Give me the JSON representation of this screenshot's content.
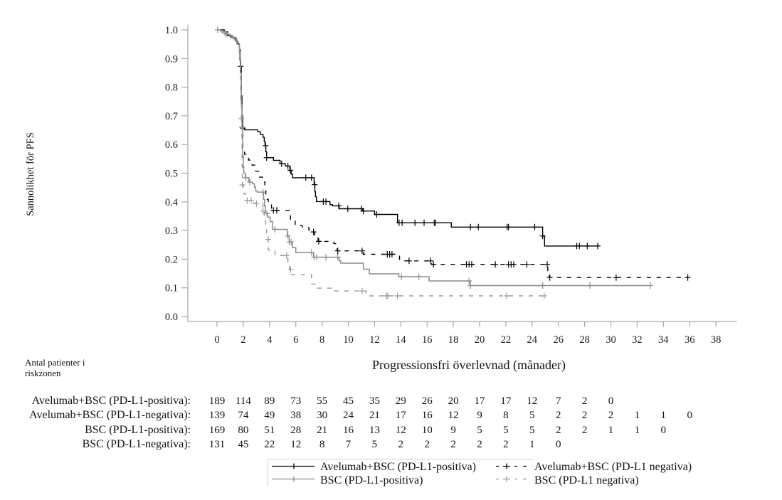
{
  "chart_data": {
    "type": "line",
    "subtype": "kaplan-meier",
    "title": "",
    "xlabel": "Progressionsfri överlevnad (månader)",
    "ylabel": "Sannolikhet för PFS",
    "xlim": [
      -2.3,
      39.6
    ],
    "ylim": [
      -0.017,
      1.017
    ],
    "x_ticks": [
      0,
      2,
      4,
      6,
      8,
      10,
      12,
      14,
      16,
      18,
      20,
      22,
      24,
      26,
      28,
      30,
      32,
      34,
      36,
      38
    ],
    "y_ticks": [
      0.0,
      0.1,
      0.2,
      0.3,
      0.4,
      0.5,
      0.6,
      0.7,
      0.8,
      0.9,
      1.0
    ],
    "y_tick_labels": [
      "0.0",
      "0.1",
      "0.2",
      "0.3",
      "0.4",
      "0.5",
      "0.6",
      "0.7",
      "0.8",
      "0.9",
      "1.0"
    ],
    "grid": false,
    "legend": {
      "position": "bottom",
      "items": [
        {
          "label": "Avelumab+BSC (PD-L1-positiva)",
          "series": "avelumab-pos"
        },
        {
          "label": "Avelumab+BSC (PD-L1 negativa)",
          "series": "avelumab-neg"
        },
        {
          "label": "BSC (PD-L1-positiva)",
          "series": "bsc-pos"
        },
        {
          "label": "BSC (PD-L1 negativa)",
          "series": "bsc-neg"
        }
      ]
    },
    "series": [
      {
        "id": "avelumab-pos",
        "name": "Avelumab+BSC (PD-L1-positiva)",
        "color": "#000000",
        "style": "solid",
        "steps": [
          [
            0,
            1.0
          ],
          [
            0.55,
            0.993
          ],
          [
            0.8,
            0.98
          ],
          [
            1.15,
            0.972
          ],
          [
            1.45,
            0.959
          ],
          [
            1.6,
            0.951
          ],
          [
            1.7,
            0.926
          ],
          [
            1.75,
            0.893
          ],
          [
            1.8,
            0.873
          ],
          [
            1.85,
            0.77
          ],
          [
            1.9,
            0.7
          ],
          [
            1.95,
            0.657
          ],
          [
            2.1,
            0.651
          ],
          [
            3.1,
            0.645
          ],
          [
            3.3,
            0.635
          ],
          [
            3.5,
            0.625
          ],
          [
            3.6,
            0.61
          ],
          [
            3.66,
            0.596
          ],
          [
            3.72,
            0.575
          ],
          [
            3.78,
            0.554
          ],
          [
            4.3,
            0.545
          ],
          [
            4.8,
            0.533
          ],
          [
            5.2,
            0.525
          ],
          [
            5.55,
            0.51
          ],
          [
            5.65,
            0.497
          ],
          [
            5.75,
            0.484
          ],
          [
            7.4,
            0.46
          ],
          [
            7.45,
            0.435
          ],
          [
            7.5,
            0.418
          ],
          [
            7.57,
            0.401
          ],
          [
            8.6,
            0.39
          ],
          [
            8.8,
            0.386
          ],
          [
            9.3,
            0.376
          ],
          [
            11.1,
            0.368
          ],
          [
            12.0,
            0.356
          ],
          [
            13.75,
            0.327
          ],
          [
            17.85,
            0.312
          ],
          [
            24.8,
            0.281
          ],
          [
            24.95,
            0.246
          ]
        ],
        "end_time": 29.06,
        "censor_times": [
          1.8,
          1.96,
          3.7,
          3.78,
          4.92,
          5.4,
          5.59,
          6.76,
          7.2,
          7.44,
          8.1,
          8.3,
          9.27,
          9.96,
          11.0,
          11.15,
          12.16,
          13.87,
          14.1,
          15.08,
          15.77,
          16.55,
          16.65,
          19.3,
          19.9,
          22.1,
          22.2,
          24.2,
          24.8,
          27.4,
          27.6,
          28.2,
          29.0
        ]
      },
      {
        "id": "avelumab-neg",
        "name": "Avelumab+BSC (PD-L1-negativa)",
        "color": "#000000",
        "style": "dashed",
        "steps": [
          [
            0,
            1.0
          ],
          [
            0.5,
            0.99
          ],
          [
            0.9,
            0.978
          ],
          [
            1.2,
            0.968
          ],
          [
            1.5,
            0.955
          ],
          [
            1.7,
            0.93
          ],
          [
            1.78,
            0.86
          ],
          [
            1.85,
            0.74
          ],
          [
            1.9,
            0.64
          ],
          [
            1.97,
            0.58
          ],
          [
            2.1,
            0.566
          ],
          [
            2.4,
            0.546
          ],
          [
            2.67,
            0.528
          ],
          [
            2.94,
            0.507
          ],
          [
            3.24,
            0.486
          ],
          [
            3.55,
            0.469
          ],
          [
            3.65,
            0.441
          ],
          [
            3.72,
            0.409
          ],
          [
            3.9,
            0.389
          ],
          [
            4.15,
            0.37
          ],
          [
            5.5,
            0.362
          ],
          [
            5.6,
            0.335
          ],
          [
            5.95,
            0.317
          ],
          [
            6.5,
            0.31
          ],
          [
            7.0,
            0.302
          ],
          [
            7.35,
            0.295
          ],
          [
            7.42,
            0.281
          ],
          [
            7.7,
            0.262
          ],
          [
            8.9,
            0.254
          ],
          [
            9.15,
            0.229
          ],
          [
            11.15,
            0.217
          ],
          [
            13.9,
            0.194
          ],
          [
            16.35,
            0.182
          ],
          [
            25.2,
            0.145
          ],
          [
            25.3,
            0.136
          ]
        ],
        "end_time": 35.86,
        "censor_times": [
          4.3,
          4.55,
          7.35,
          7.75,
          9.2,
          11.05,
          12.97,
          13.15,
          13.33,
          14.63,
          16.27,
          16.49,
          19.0,
          19.2,
          19.4,
          21.2,
          22.2,
          22.4,
          22.6,
          23.6,
          25.15,
          25.35,
          30.4,
          35.86
        ]
      },
      {
        "id": "bsc-pos",
        "name": "BSC (PD-L1-positiva)",
        "color": "#8c8c8c",
        "style": "solid",
        "steps": [
          [
            0,
            1.0
          ],
          [
            0.3,
            0.993
          ],
          [
            0.6,
            0.985
          ],
          [
            1.0,
            0.975
          ],
          [
            1.3,
            0.965
          ],
          [
            1.55,
            0.95
          ],
          [
            1.7,
            0.92
          ],
          [
            1.78,
            0.85
          ],
          [
            1.85,
            0.74
          ],
          [
            1.9,
            0.66
          ],
          [
            1.95,
            0.56
          ],
          [
            2.0,
            0.52
          ],
          [
            2.04,
            0.5
          ],
          [
            2.16,
            0.484
          ],
          [
            2.43,
            0.469
          ],
          [
            2.7,
            0.463
          ],
          [
            2.85,
            0.451
          ],
          [
            2.95,
            0.438
          ],
          [
            3.06,
            0.434
          ],
          [
            3.55,
            0.409
          ],
          [
            3.62,
            0.385
          ],
          [
            3.69,
            0.36
          ],
          [
            3.84,
            0.347
          ],
          [
            4.05,
            0.331
          ],
          [
            4.23,
            0.304
          ],
          [
            5.35,
            0.281
          ],
          [
            5.5,
            0.26
          ],
          [
            5.75,
            0.24
          ],
          [
            6.0,
            0.223
          ],
          [
            7.35,
            0.207
          ],
          [
            9.3,
            0.194
          ],
          [
            9.43,
            0.186
          ],
          [
            11.15,
            0.165
          ],
          [
            11.6,
            0.149
          ],
          [
            13.85,
            0.139
          ],
          [
            16.15,
            0.124
          ],
          [
            19.28,
            0.108
          ]
        ],
        "end_time": 33.0,
        "censor_times": [
          0.05,
          0.7,
          1.9,
          2.2,
          2.5,
          3.5,
          3.8,
          4.4,
          5.4,
          5.5,
          5.65,
          7.2,
          7.4,
          7.6,
          8.3,
          9.2,
          14.05,
          15.37,
          19.2,
          19.3,
          24.8,
          28.4,
          33.0
        ]
      },
      {
        "id": "bsc-neg",
        "name": "BSC (PD-L1-negativa)",
        "color": "#9a9a9a",
        "style": "dashed",
        "steps": [
          [
            0,
            1.0
          ],
          [
            0.4,
            0.99
          ],
          [
            0.8,
            0.98
          ],
          [
            1.2,
            0.968
          ],
          [
            1.5,
            0.95
          ],
          [
            1.7,
            0.9
          ],
          [
            1.8,
            0.75
          ],
          [
            1.86,
            0.69
          ],
          [
            1.89,
            0.624
          ],
          [
            1.91,
            0.525
          ],
          [
            1.93,
            0.459
          ],
          [
            2.0,
            0.43
          ],
          [
            2.16,
            0.405
          ],
          [
            2.79,
            0.394
          ],
          [
            3.5,
            0.368
          ],
          [
            3.6,
            0.339
          ],
          [
            3.7,
            0.31
          ],
          [
            3.78,
            0.269
          ],
          [
            3.91,
            0.232
          ],
          [
            4.42,
            0.213
          ],
          [
            5.4,
            0.186
          ],
          [
            5.53,
            0.163
          ],
          [
            5.64,
            0.146
          ],
          [
            7.2,
            0.113
          ],
          [
            7.66,
            0.099
          ],
          [
            9.0,
            0.089
          ],
          [
            11.35,
            0.072
          ]
        ],
        "end_time": 24.95,
        "censor_times": [
          0.6,
          1.86,
          1.93,
          2.3,
          2.6,
          3.0,
          3.5,
          3.9,
          5.3,
          5.6,
          11.05,
          12.9,
          13.0,
          13.75,
          22.07,
          24.92
        ]
      }
    ],
    "risk_table": {
      "title_lines": [
        "Antal patienter i",
        "riskzonen"
      ],
      "times": [
        0,
        2,
        4,
        6,
        8,
        10,
        12,
        14,
        16,
        18,
        20,
        22,
        24,
        26,
        28,
        30,
        32,
        34,
        36
      ],
      "rows": [
        {
          "label": "Avelumab+BSC (PD-L1-positiva):",
          "counts": [
            189,
            114,
            89,
            73,
            55,
            45,
            35,
            29,
            26,
            20,
            17,
            17,
            12,
            7,
            2,
            0
          ]
        },
        {
          "label": "Avelumab+BSC (PD-L1-negativa):",
          "counts": [
            139,
            74,
            49,
            38,
            30,
            24,
            21,
            17,
            16,
            12,
            9,
            8,
            5,
            2,
            2,
            2,
            1,
            1,
            0
          ]
        },
        {
          "label": "BSC (PD-L1-positiva):",
          "counts": [
            169,
            80,
            51,
            28,
            21,
            16,
            13,
            12,
            10,
            9,
            5,
            5,
            5,
            2,
            2,
            1,
            1,
            0
          ]
        },
        {
          "label": "BSC (PD-L1-negativa):",
          "counts": [
            131,
            45,
            22,
            12,
            8,
            7,
            5,
            2,
            2,
            2,
            2,
            2,
            1,
            0
          ]
        }
      ]
    }
  }
}
